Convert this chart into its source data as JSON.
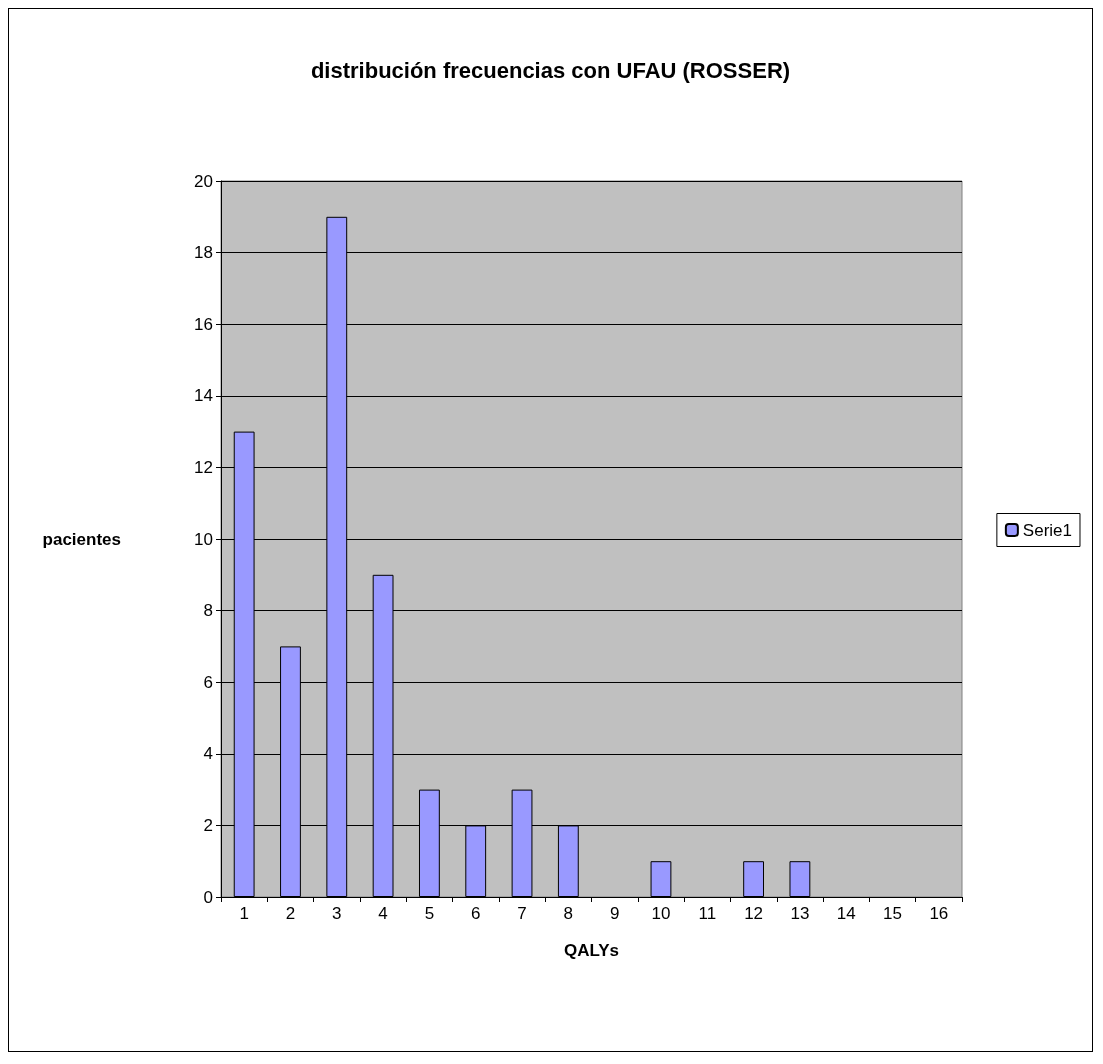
{
  "chart_data": {
    "type": "bar",
    "title": "distribución frecuencias con UFAU (ROSSER)",
    "xlabel": "QALYs",
    "ylabel": "pacientes",
    "categories": [
      "1",
      "2",
      "3",
      "4",
      "5",
      "6",
      "7",
      "8",
      "9",
      "10",
      "11",
      "12",
      "13",
      "14",
      "15",
      "16"
    ],
    "series": [
      {
        "name": "Serie1",
        "color": "#9999ff",
        "values": [
          13,
          7,
          19,
          9,
          3,
          2,
          3,
          2,
          0,
          1,
          0,
          1,
          1,
          0,
          0,
          null
        ]
      }
    ],
    "ylim": [
      0,
      20
    ],
    "yticks": [
      0,
      2,
      4,
      6,
      8,
      10,
      12,
      14,
      16,
      18,
      20
    ],
    "grid": "y",
    "legend": "right"
  }
}
